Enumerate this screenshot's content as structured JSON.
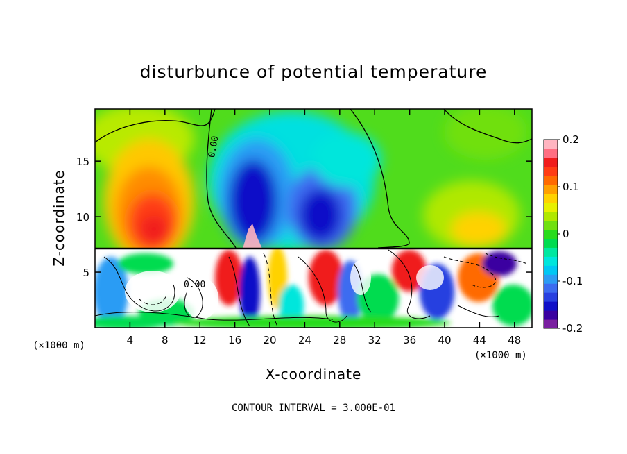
{
  "chart_data": {
    "type": "heatmap",
    "title": "disturbunce of potential temperature",
    "xlabel": "X-coordinate",
    "ylabel": "Z-coordinate",
    "x_unit": "(×1000 m)",
    "xlim": [
      0,
      50
    ],
    "ylim": [
      0,
      19.7
    ],
    "xticks": [
      4,
      8,
      12,
      16,
      20,
      24,
      28,
      32,
      36,
      40,
      44,
      48
    ],
    "yticks": [
      5,
      10,
      15
    ],
    "footer": "CONTOUR INTERVAL = 3.000E-01",
    "colorbar": {
      "range": [
        -0.2,
        0.2
      ],
      "ticks": [
        "0.2",
        "0.1",
        "0",
        "-0.1",
        "-0.2"
      ],
      "colors": [
        "#7a1fa0",
        "#3b00a0",
        "#1010c8",
        "#2840e0",
        "#3c6cf0",
        "#2c9cf4",
        "#00c8f4",
        "#00e6dc",
        "#00e8a0",
        "#00dc50",
        "#28dc1c",
        "#70e010",
        "#b0e800",
        "#e8f000",
        "#ffd200",
        "#ffa000",
        "#ff6a00",
        "#ff3c14",
        "#f01c1c",
        "#ff6e82",
        "#ffb4c0"
      ]
    },
    "upper_layer": {
      "z_range": [
        7.3,
        19.7
      ],
      "features": [
        {
          "name": "warm anomaly",
          "x_center": 7,
          "z_center": 10,
          "value": 0.18
        },
        {
          "name": "cold anomaly",
          "x_center": 18,
          "z_center": 11,
          "value": -0.18
        },
        {
          "name": "cold anomaly",
          "x_center": 27,
          "z_center": 10,
          "value": -0.17
        },
        {
          "name": "warm anomaly",
          "x_center": 44,
          "z_center": 10,
          "value": 0.1
        }
      ],
      "contour_labels": [
        "0.00"
      ]
    },
    "lower_layer": {
      "z_range": [
        0,
        7.3
      ],
      "description_values": [
        "0.00"
      ]
    }
  }
}
